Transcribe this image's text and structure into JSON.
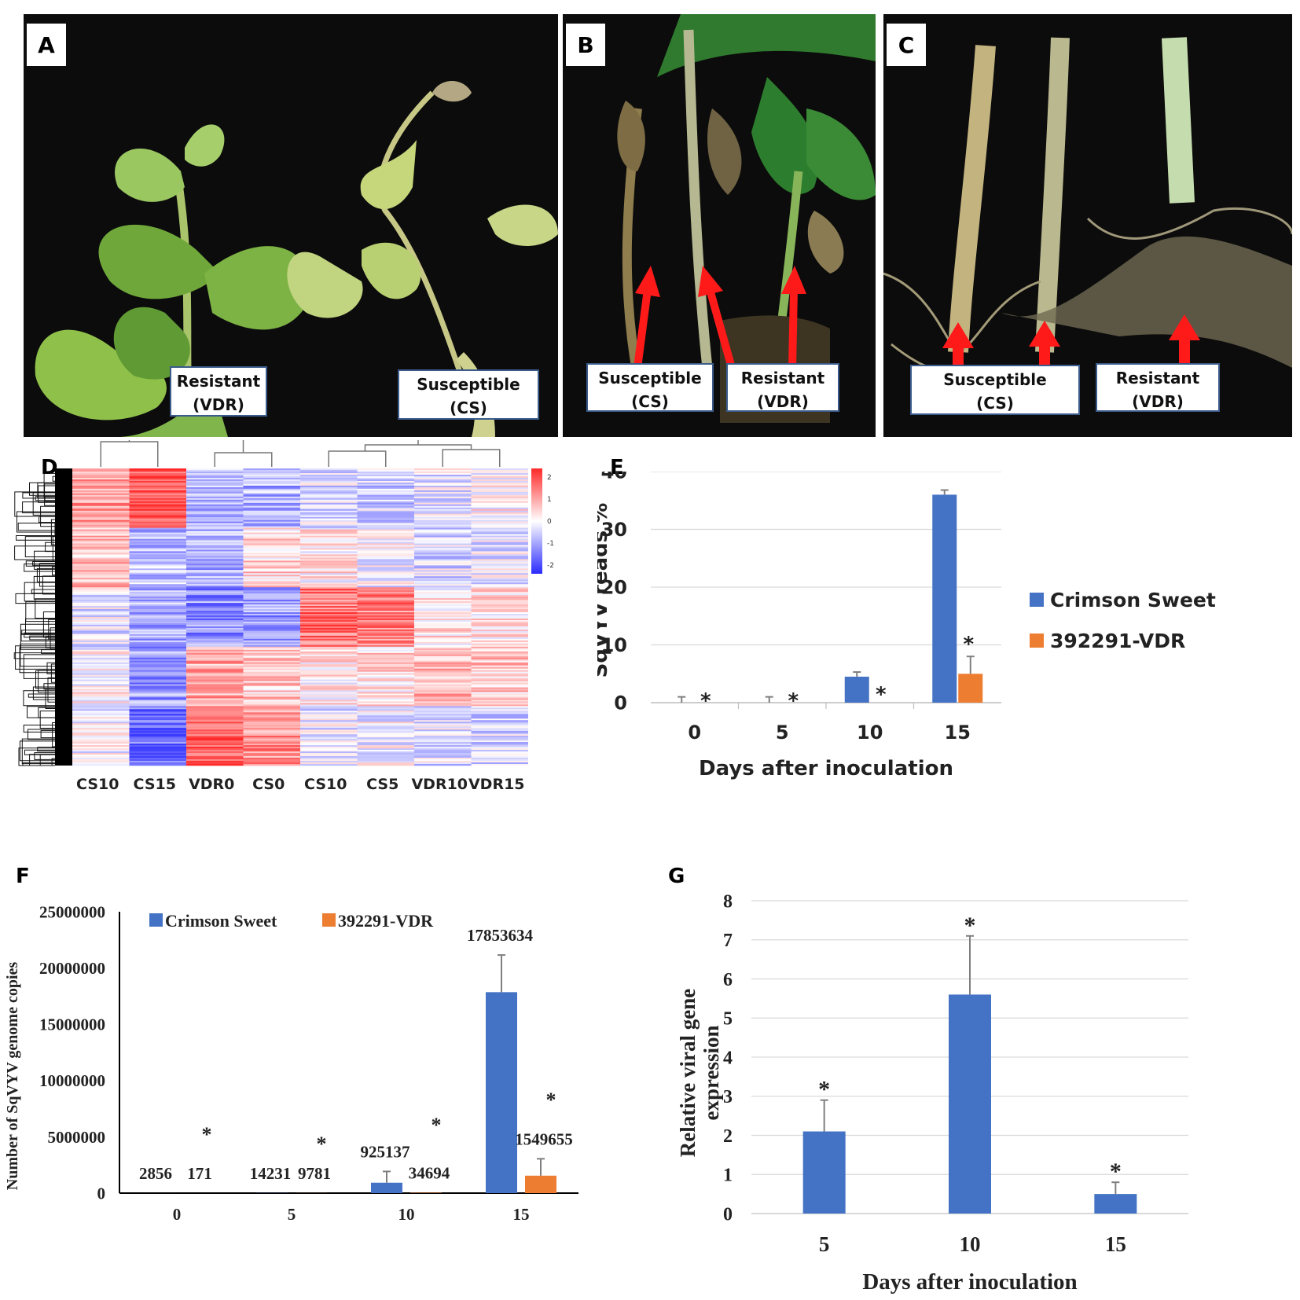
{
  "panels": {
    "a": {
      "letter": "A",
      "resistant": [
        "Resistant",
        "(VDR)"
      ],
      "susceptible": [
        "Susceptible",
        "(CS)"
      ]
    },
    "b": {
      "letter": "B",
      "susceptible": [
        "Susceptible",
        "(CS)"
      ],
      "resistant": [
        "Resistant",
        "(VDR)"
      ]
    },
    "c": {
      "letter": "C",
      "susceptible": [
        "Susceptible",
        "(CS)"
      ],
      "resistant": [
        "Resistant",
        "(VDR)"
      ]
    }
  },
  "heatmap": {
    "letter": "D",
    "columns": [
      "CS10",
      "CS15",
      "VDR0",
      "CS0",
      "CS10",
      "CS5",
      "VDR10",
      "VDR15"
    ],
    "scale_ticks": [
      "2",
      "1",
      "0",
      "-1",
      "-2"
    ],
    "colors": {
      "high": "#ff2a2a",
      "mid": "#ffffff",
      "low": "#2a2aff"
    }
  },
  "chart_data": [
    {
      "id": "E",
      "letter": "E",
      "type": "bar",
      "categories": [
        "0",
        "5",
        "10",
        "15"
      ],
      "series": [
        {
          "name": "Crimson Sweet",
          "color": "#4472c4",
          "values": [
            0,
            0,
            4.5,
            36
          ],
          "errors": [
            1,
            1,
            0.8,
            0.8
          ]
        },
        {
          "name": "392291-VDR",
          "color": "#ed7d31",
          "values": [
            0,
            0,
            0,
            5
          ],
          "errors": [
            0,
            0,
            0,
            3
          ]
        }
      ],
      "annotations": [
        "*",
        "*",
        "*",
        "*"
      ],
      "xlabel": "Days after inoculation",
      "ylabel": "SqVYV reads %",
      "ylim": [
        0,
        40
      ],
      "yticks": [
        "0",
        "10",
        "20",
        "30",
        "40"
      ],
      "grid": true,
      "legend": "right"
    },
    {
      "id": "F",
      "letter": "F",
      "type": "bar",
      "categories": [
        "0",
        "5",
        "10",
        "15"
      ],
      "series": [
        {
          "name": "Crimson Sweet",
          "color": "#4472c4",
          "values": [
            2856,
            14231,
            925137,
            17853634
          ],
          "errors": [
            0,
            0,
            1000000,
            3300000
          ],
          "labels": [
            "2856",
            "14231",
            "925137",
            "17853634"
          ]
        },
        {
          "name": "392291-VDR",
          "color": "#ed7d31",
          "values": [
            171,
            9781,
            34694,
            1549655
          ],
          "errors": [
            0,
            0,
            0,
            1500000
          ],
          "labels": [
            "171",
            "9781",
            "34694",
            "1549655"
          ]
        }
      ],
      "annotations": [
        "*",
        "*",
        "*",
        "*"
      ],
      "ylabel": "Number of SqVYV genome copies",
      "ylim": [
        0,
        25000000
      ],
      "yticks": [
        "0",
        "5000000",
        "10000000",
        "15000000",
        "20000000",
        "25000000"
      ],
      "grid": false,
      "legend": "top"
    },
    {
      "id": "G",
      "letter": "G",
      "type": "bar",
      "categories": [
        "5",
        "10",
        "15"
      ],
      "series": [
        {
          "color": "#4472c4",
          "values": [
            2.1,
            5.6,
            0.5
          ],
          "errors": [
            0.8,
            1.5,
            0.3
          ]
        }
      ],
      "annotations": [
        "*",
        "*",
        "*"
      ],
      "xlabel": "Days after inoculation",
      "ylabel": [
        "Relative viral gene",
        "expression"
      ],
      "ylim": [
        0,
        8
      ],
      "yticks": [
        "0",
        "1",
        "2",
        "3",
        "4",
        "5",
        "6",
        "7",
        "8"
      ],
      "grid": true
    }
  ]
}
